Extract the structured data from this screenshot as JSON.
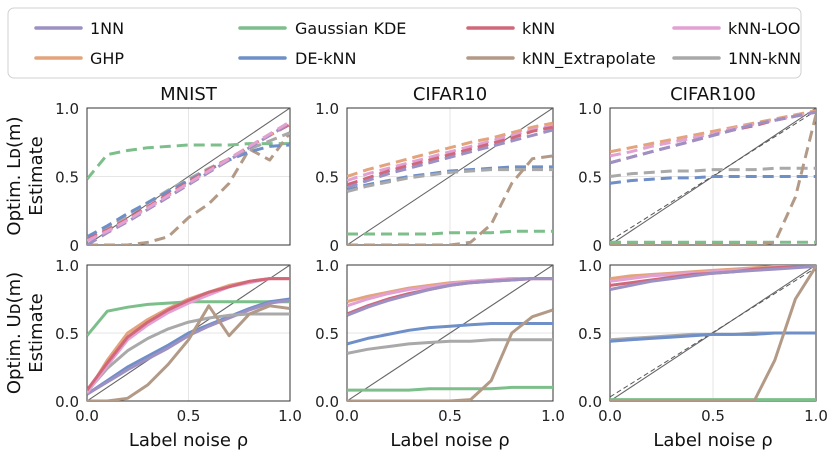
{
  "chart_data": {
    "type": "line",
    "x": [
      0.0,
      0.1,
      0.2,
      0.3,
      0.4,
      0.5,
      0.6,
      0.7,
      0.8,
      0.9,
      1.0
    ],
    "xlim": [
      0,
      1
    ],
    "ylim": [
      0,
      1
    ],
    "xticks": [
      "0.0",
      "0.5",
      "1.0"
    ],
    "yticks": [
      "0",
      "0.5",
      "1.0"
    ],
    "lower_yticks": [
      "0.0",
      "0.5",
      "1.0"
    ],
    "xlabel": "Label noise ρ",
    "ylabel_top": [
      "Optim. Lᴅ(m)",
      "Estimate"
    ],
    "ylabel_bottom": [
      "Optim. Uᴅ(m)",
      "Estimate"
    ],
    "titles": [
      "MNIST",
      "CIFAR10",
      "CIFAR100"
    ],
    "legend": [
      {
        "name": "1NN",
        "color": "#9d90c2"
      },
      {
        "name": "GHP",
        "color": "#e3a47c"
      },
      {
        "name": "Gaussian KDE",
        "color": "#7cbf8a"
      },
      {
        "name": "DE-kNN",
        "color": "#6f8fc8"
      },
      {
        "name": "kNN",
        "color": "#d1687a"
      },
      {
        "name": "kNN_Extrapolate",
        "color": "#b39a87"
      },
      {
        "name": "kNN-LOO",
        "color": "#e3a0d3"
      },
      {
        "name": "1NN-kNN",
        "color": "#a9a9a9"
      }
    ],
    "panels": [
      {
        "row": "lower",
        "dataset": "MNIST",
        "series": {
          "GHP": [
            0.06,
            0.3,
            0.5,
            0.6,
            0.68,
            0.75,
            0.8,
            0.85,
            0.88,
            0.9,
            0.9
          ],
          "Gaussian KDE": [
            0.48,
            0.66,
            0.69,
            0.71,
            0.72,
            0.73,
            0.73,
            0.73,
            0.73,
            0.73,
            0.73
          ],
          "DE-kNN": [
            0.05,
            0.15,
            0.25,
            0.33,
            0.41,
            0.5,
            0.56,
            0.62,
            0.68,
            0.73,
            0.75
          ],
          "1NN": [
            0.05,
            0.14,
            0.23,
            0.31,
            0.39,
            0.48,
            0.55,
            0.61,
            0.67,
            0.72,
            0.74
          ],
          "1NN-kNN": [
            0.07,
            0.24,
            0.37,
            0.46,
            0.53,
            0.58,
            0.61,
            0.63,
            0.64,
            0.64,
            0.64
          ],
          "kNN_Extrapolate": [
            0.0,
            0.0,
            0.02,
            0.12,
            0.27,
            0.45,
            0.7,
            0.48,
            0.64,
            0.7,
            0.68
          ],
          "kNN-LOO": [
            0.06,
            0.26,
            0.45,
            0.56,
            0.65,
            0.72,
            0.78,
            0.84,
            0.87,
            0.9,
            0.9
          ],
          "kNN": [
            0.08,
            0.28,
            0.47,
            0.58,
            0.67,
            0.74,
            0.8,
            0.84,
            0.88,
            0.9,
            0.9
          ]
        }
      },
      {
        "row": "upper",
        "dataset": "MNIST",
        "series": {
          "Gaussian KDE": [
            0.48,
            0.66,
            0.69,
            0.71,
            0.72,
            0.73,
            0.73,
            0.73,
            0.74,
            0.74,
            0.74
          ],
          "kNN_Extrapolate": [
            0.0,
            0.0,
            0.0,
            0.02,
            0.06,
            0.2,
            0.3,
            0.45,
            0.7,
            0.62,
            0.82
          ],
          "1NN-kNN": [
            0.05,
            0.12,
            0.22,
            0.31,
            0.4,
            0.48,
            0.56,
            0.63,
            0.7,
            0.76,
            0.82
          ],
          "DE-kNN": [
            0.06,
            0.14,
            0.23,
            0.31,
            0.39,
            0.47,
            0.55,
            0.62,
            0.68,
            0.72,
            0.73
          ],
          "kNN": [
            0.04,
            0.11,
            0.19,
            0.28,
            0.37,
            0.46,
            0.55,
            0.63,
            0.72,
            0.8,
            0.88
          ],
          "GHP": [
            0.03,
            0.1,
            0.18,
            0.27,
            0.36,
            0.45,
            0.54,
            0.63,
            0.72,
            0.8,
            0.9
          ],
          "1NN": [
            0.0,
            0.09,
            0.17,
            0.26,
            0.35,
            0.44,
            0.53,
            0.62,
            0.71,
            0.8,
            0.89
          ],
          "kNN-LOO": [
            0.03,
            0.1,
            0.18,
            0.27,
            0.36,
            0.45,
            0.54,
            0.63,
            0.72,
            0.81,
            0.9
          ]
        }
      },
      {
        "row": "upper",
        "dataset": "CIFAR10",
        "series": {
          "GHP": [
            0.5,
            0.55,
            0.59,
            0.63,
            0.67,
            0.71,
            0.75,
            0.78,
            0.82,
            0.86,
            0.89
          ],
          "kNN-LOO": [
            0.47,
            0.52,
            0.56,
            0.6,
            0.64,
            0.68,
            0.72,
            0.76,
            0.8,
            0.84,
            0.87
          ],
          "kNN": [
            0.44,
            0.49,
            0.54,
            0.58,
            0.62,
            0.66,
            0.7,
            0.74,
            0.78,
            0.83,
            0.86
          ],
          "1NN": [
            0.42,
            0.47,
            0.52,
            0.56,
            0.6,
            0.64,
            0.68,
            0.72,
            0.76,
            0.8,
            0.84
          ],
          "DE-kNN": [
            0.4,
            0.44,
            0.47,
            0.5,
            0.52,
            0.54,
            0.55,
            0.56,
            0.57,
            0.57,
            0.57
          ],
          "1NN-kNN": [
            0.39,
            0.43,
            0.46,
            0.49,
            0.51,
            0.53,
            0.54,
            0.55,
            0.55,
            0.55,
            0.55
          ],
          "Gaussian KDE": [
            0.08,
            0.08,
            0.08,
            0.08,
            0.08,
            0.09,
            0.09,
            0.09,
            0.1,
            0.1,
            0.1
          ],
          "kNN_Extrapolate": [
            0.0,
            0.0,
            0.0,
            0.0,
            0.0,
            0.0,
            0.02,
            0.15,
            0.45,
            0.63,
            0.65
          ]
        }
      },
      {
        "row": "upper",
        "dataset": "CIFAR100",
        "series": {
          "GHP": [
            0.68,
            0.71,
            0.74,
            0.77,
            0.8,
            0.83,
            0.86,
            0.89,
            0.92,
            0.95,
            0.98
          ],
          "kNN-LOO": [
            0.65,
            0.68,
            0.72,
            0.75,
            0.78,
            0.81,
            0.85,
            0.88,
            0.91,
            0.94,
            0.97
          ],
          "kNN": [
            0.6,
            0.64,
            0.68,
            0.72,
            0.76,
            0.8,
            0.84,
            0.87,
            0.91,
            0.94,
            0.97
          ],
          "1NN": [
            0.6,
            0.64,
            0.68,
            0.72,
            0.76,
            0.8,
            0.84,
            0.88,
            0.91,
            0.94,
            0.97
          ],
          "1NN-kNN": [
            0.5,
            0.52,
            0.53,
            0.54,
            0.54,
            0.55,
            0.55,
            0.55,
            0.56,
            0.56,
            0.56
          ],
          "DE-kNN": [
            0.45,
            0.47,
            0.48,
            0.49,
            0.49,
            0.5,
            0.5,
            0.5,
            0.5,
            0.5,
            0.5
          ],
          "Gaussian KDE": [
            0.02,
            0.02,
            0.02,
            0.02,
            0.02,
            0.02,
            0.02,
            0.02,
            0.02,
            0.02,
            0.02
          ],
          "kNN_Extrapolate": [
            0.0,
            0.0,
            0.0,
            0.0,
            0.0,
            0.0,
            0.0,
            0.0,
            0.02,
            0.35,
            0.95
          ]
        }
      },
      {
        "row": "lower",
        "dataset": "CIFAR10",
        "series": {
          "GHP": [
            0.73,
            0.77,
            0.8,
            0.83,
            0.85,
            0.87,
            0.88,
            0.89,
            0.9,
            0.9,
            0.9
          ],
          "kNN-LOO": [
            0.7,
            0.75,
            0.79,
            0.82,
            0.84,
            0.86,
            0.88,
            0.89,
            0.9,
            0.9,
            0.9
          ],
          "kNN": [
            0.64,
            0.7,
            0.75,
            0.79,
            0.82,
            0.85,
            0.87,
            0.88,
            0.89,
            0.9,
            0.9
          ],
          "1NN": [
            0.63,
            0.69,
            0.74,
            0.78,
            0.82,
            0.85,
            0.87,
            0.88,
            0.89,
            0.9,
            0.9
          ],
          "DE-kNN": [
            0.42,
            0.46,
            0.49,
            0.52,
            0.54,
            0.55,
            0.56,
            0.57,
            0.57,
            0.57,
            0.57
          ],
          "1NN-kNN": [
            0.35,
            0.38,
            0.4,
            0.42,
            0.43,
            0.44,
            0.44,
            0.45,
            0.45,
            0.45,
            0.45
          ],
          "Gaussian KDE": [
            0.08,
            0.08,
            0.08,
            0.08,
            0.09,
            0.09,
            0.09,
            0.09,
            0.1,
            0.1,
            0.1
          ],
          "kNN_Extrapolate": [
            0.0,
            0.0,
            0.0,
            0.0,
            0.0,
            0.0,
            0.01,
            0.15,
            0.5,
            0.62,
            0.67
          ]
        }
      },
      {
        "row": "lower",
        "dataset": "CIFAR100",
        "series": {
          "GHP": [
            0.9,
            0.92,
            0.93,
            0.94,
            0.95,
            0.96,
            0.97,
            0.98,
            0.99,
            0.99,
            0.99
          ],
          "kNN-LOO": [
            0.88,
            0.9,
            0.92,
            0.93,
            0.94,
            0.95,
            0.96,
            0.97,
            0.98,
            0.99,
            0.99
          ],
          "kNN": [
            0.85,
            0.87,
            0.89,
            0.91,
            0.93,
            0.94,
            0.95,
            0.97,
            0.98,
            0.99,
            0.99
          ],
          "1NN": [
            0.82,
            0.85,
            0.88,
            0.9,
            0.92,
            0.94,
            0.95,
            0.96,
            0.97,
            0.98,
            0.99
          ],
          "1NN-kNN": [
            0.45,
            0.46,
            0.47,
            0.48,
            0.49,
            0.49,
            0.49,
            0.5,
            0.5,
            0.5,
            0.5
          ],
          "DE-kNN": [
            0.44,
            0.45,
            0.46,
            0.47,
            0.48,
            0.49,
            0.49,
            0.49,
            0.5,
            0.5,
            0.5
          ],
          "Gaussian KDE": [
            0.01,
            0.01,
            0.01,
            0.01,
            0.01,
            0.01,
            0.01,
            0.01,
            0.01,
            0.01,
            0.01
          ],
          "kNN_Extrapolate": [
            0.0,
            0.0,
            0.0,
            0.0,
            0.0,
            0.0,
            0.0,
            0.0,
            0.3,
            0.75,
            0.99
          ]
        }
      }
    ]
  }
}
